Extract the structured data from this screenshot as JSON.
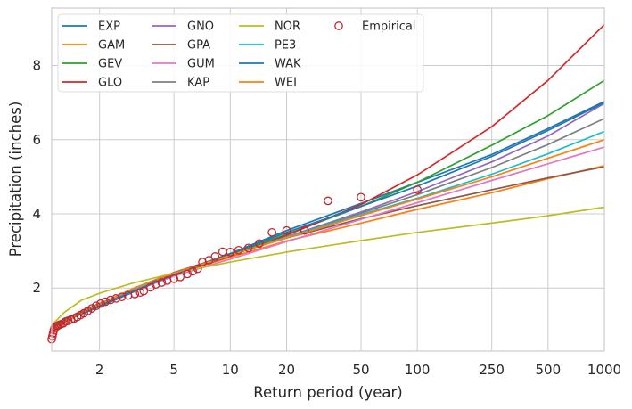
{
  "chart_data": {
    "type": "line",
    "xlabel": "Return period (year)",
    "ylabel": "Precipitation (inches)",
    "x_scale": "log",
    "xlim": [
      1.11,
      1000
    ],
    "ylim": [
      0.3,
      9.55
    ],
    "x_ticks": [
      2,
      5,
      10,
      20,
      50,
      100,
      250,
      500,
      1000
    ],
    "x_tick_labels": [
      "2",
      "5",
      "10",
      "20",
      "50",
      "100",
      "250",
      "500",
      "1000"
    ],
    "y_ticks": [
      2,
      4,
      6,
      8
    ],
    "y_tick_labels": [
      "2",
      "4",
      "6",
      "8"
    ],
    "grid": true,
    "legend_position": "top-left",
    "legend_columns": 4,
    "series": [
      {
        "name": "EXP",
        "color": "#1f77b4",
        "x": [
          1.11,
          1.3,
          1.6,
          2,
          3,
          5,
          10,
          20,
          50,
          100,
          250,
          500,
          1000
        ],
        "y": [
          0.88,
          1.1,
          1.3,
          1.5,
          1.88,
          2.38,
          2.93,
          3.55,
          4.28,
          4.85,
          5.6,
          6.3,
          7.03
        ]
      },
      {
        "name": "GAM",
        "color": "#ff7f0e",
        "x": [
          1.11,
          1.3,
          1.6,
          2,
          3,
          5,
          10,
          20,
          50,
          100,
          250,
          500,
          1000
        ],
        "y": [
          0.9,
          1.14,
          1.37,
          1.57,
          1.95,
          2.37,
          2.83,
          3.27,
          3.75,
          4.12,
          4.57,
          4.95,
          5.3
        ]
      },
      {
        "name": "GEV",
        "color": "#2ca02c",
        "x": [
          1.11,
          1.3,
          1.6,
          2,
          3,
          5,
          10,
          20,
          50,
          100,
          250,
          500,
          1000
        ],
        "y": [
          0.9,
          1.12,
          1.35,
          1.56,
          1.94,
          2.38,
          2.9,
          3.45,
          4.2,
          4.85,
          5.85,
          6.65,
          7.6
        ]
      },
      {
        "name": "GLO",
        "color": "#d62728",
        "x": [
          1.11,
          1.3,
          1.6,
          2,
          3,
          5,
          10,
          20,
          50,
          100,
          250,
          500,
          1000
        ],
        "y": [
          0.92,
          1.15,
          1.38,
          1.58,
          1.95,
          2.37,
          2.86,
          3.42,
          4.25,
          5.05,
          6.35,
          7.6,
          9.1
        ]
      },
      {
        "name": "GNO",
        "color": "#9467bd",
        "x": [
          1.11,
          1.3,
          1.6,
          2,
          3,
          5,
          10,
          20,
          50,
          100,
          250,
          500,
          1000
        ],
        "y": [
          0.9,
          1.13,
          1.36,
          1.57,
          1.95,
          2.38,
          2.88,
          3.38,
          4.05,
          4.6,
          5.4,
          6.1,
          6.98
        ]
      },
      {
        "name": "GPA",
        "color": "#8c564b",
        "x": [
          1.11,
          1.3,
          1.6,
          2,
          3,
          5,
          10,
          20,
          50,
          100,
          250,
          500,
          1000
        ],
        "y": [
          0.85,
          1.08,
          1.33,
          1.56,
          1.98,
          2.42,
          2.9,
          3.35,
          3.87,
          4.22,
          4.65,
          4.97,
          5.27
        ]
      },
      {
        "name": "GUM",
        "color": "#e377c2",
        "x": [
          1.11,
          1.3,
          1.6,
          2,
          3,
          5,
          10,
          20,
          50,
          100,
          250,
          500,
          1000
        ],
        "y": [
          0.88,
          1.1,
          1.33,
          1.53,
          1.9,
          2.32,
          2.78,
          3.25,
          3.85,
          4.3,
          4.9,
          5.35,
          5.8
        ]
      },
      {
        "name": "KAP",
        "color": "#7f7f7f",
        "x": [
          1.11,
          1.3,
          1.6,
          2,
          3,
          5,
          10,
          20,
          50,
          100,
          250,
          500,
          1000
        ],
        "y": [
          0.9,
          1.13,
          1.36,
          1.57,
          1.95,
          2.38,
          2.88,
          3.38,
          4.02,
          4.52,
          5.25,
          5.87,
          6.57
        ]
      },
      {
        "name": "NOR",
        "color": "#bcbd22",
        "x": [
          1.11,
          1.3,
          1.6,
          2,
          3,
          5,
          10,
          20,
          50,
          100,
          250,
          500,
          1000
        ],
        "y": [
          1.0,
          1.35,
          1.67,
          1.86,
          2.13,
          2.4,
          2.7,
          2.97,
          3.28,
          3.5,
          3.75,
          3.95,
          4.18
        ]
      },
      {
        "name": "PE3",
        "color": "#17becf",
        "x": [
          1.11,
          1.3,
          1.6,
          2,
          3,
          5,
          10,
          20,
          50,
          100,
          250,
          500,
          1000
        ],
        "y": [
          0.9,
          1.12,
          1.35,
          1.56,
          1.95,
          2.38,
          2.88,
          3.37,
          3.98,
          4.42,
          5.07,
          5.62,
          6.22
        ]
      },
      {
        "name": "WAK",
        "color": "#1f77b4",
        "x": [
          1.11,
          1.3,
          1.6,
          2,
          3,
          5,
          10,
          20,
          50,
          100,
          250,
          500,
          1000
        ],
        "y": [
          0.88,
          1.1,
          1.32,
          1.52,
          1.9,
          2.36,
          2.92,
          3.5,
          4.2,
          4.75,
          5.55,
          6.25,
          7.0
        ]
      },
      {
        "name": "WEI",
        "color": "#ff7f0e",
        "x": [
          1.11,
          1.3,
          1.6,
          2,
          3,
          5,
          10,
          20,
          50,
          100,
          250,
          500,
          1000
        ],
        "y": [
          0.85,
          1.09,
          1.34,
          1.56,
          1.98,
          2.4,
          2.88,
          3.35,
          3.95,
          4.4,
          5.0,
          5.5,
          6.0
        ]
      }
    ],
    "empirical": {
      "name": "Empirical",
      "color": "#c0282d",
      "x": [
        1.11,
        1.12,
        1.13,
        1.14,
        1.15,
        1.17,
        1.19,
        1.21,
        1.24,
        1.28,
        1.32,
        1.36,
        1.41,
        1.46,
        1.52,
        1.58,
        1.65,
        1.73,
        1.82,
        1.92,
        2.03,
        2.15,
        2.29,
        2.45,
        2.63,
        2.84,
        3.09,
        3.3,
        3.45,
        3.75,
        4.0,
        4.3,
        4.6,
        5.0,
        5.4,
        5.9,
        6.3,
        6.7,
        7.1,
        7.7,
        8.3,
        9.1,
        10.0,
        11.1,
        12.5,
        14.3,
        16.7,
        20.0,
        25.0,
        33.3,
        50.0,
        100.0
      ],
      "y": [
        0.62,
        0.7,
        0.78,
        0.86,
        0.92,
        0.95,
        0.98,
        1.0,
        1.02,
        1.05,
        1.1,
        1.12,
        1.15,
        1.18,
        1.22,
        1.27,
        1.32,
        1.38,
        1.45,
        1.52,
        1.58,
        1.63,
        1.68,
        1.72,
        1.76,
        1.8,
        1.84,
        1.88,
        1.92,
        2.02,
        2.1,
        2.15,
        2.2,
        2.25,
        2.3,
        2.38,
        2.45,
        2.52,
        2.7,
        2.75,
        2.85,
        2.98,
        2.97,
        3.02,
        3.08,
        3.2,
        3.5,
        3.55,
        3.55,
        4.35,
        4.45,
        4.65
      ]
    }
  }
}
